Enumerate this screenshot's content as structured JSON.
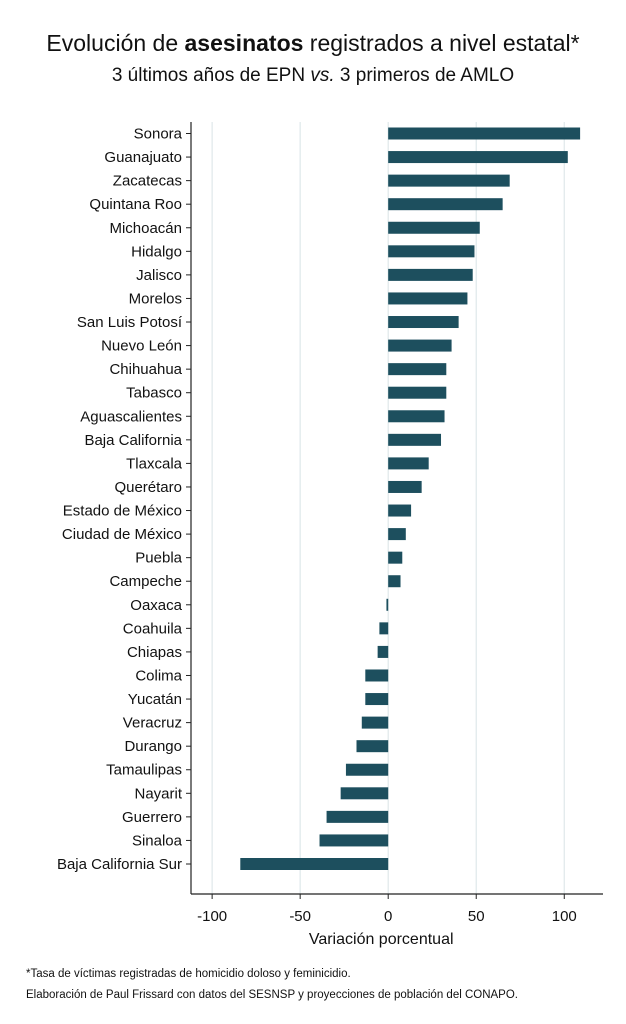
{
  "header": {
    "title_pre": "Evolución de ",
    "title_bold": "asesinatos",
    "title_post": " registrados a nivel estatal*",
    "subtitle_pre": "3 últimos años de EPN ",
    "subtitle_italic": "vs.",
    "subtitle_post": " 3 primeros de AMLO"
  },
  "footer": {
    "note": "*Tasa de víctimas registradas de homicidio doloso y feminicidio.",
    "source": "Elaboración de Paul Frissard con datos del SESNSP y proyecciones de población del CONAPO."
  },
  "colors": {
    "bar": "#1d4f5e",
    "grid": "#dfe8ea",
    "axis": "#222222"
  },
  "chart_data": {
    "type": "bar",
    "orientation": "horizontal",
    "title": "Evolución de asesinatos registrados a nivel estatal*",
    "subtitle": "3 últimos años de EPN vs. 3 primeros de AMLO",
    "xlabel": "Variación porcentual",
    "ylabel": "",
    "xlim": [
      -112,
      122
    ],
    "xticks": [
      -100,
      -50,
      0,
      50,
      100
    ],
    "grid": true,
    "categories": [
      "Sonora",
      "Guanajuato",
      "Zacatecas",
      "Quintana Roo",
      "Michoacán",
      "Hidalgo",
      "Jalisco",
      "Morelos",
      "San Luis Potosí",
      "Nuevo León",
      "Chihuahua",
      "Tabasco",
      "Aguascalientes",
      "Baja California",
      "Tlaxcala",
      "Querétaro",
      "Estado de México",
      "Ciudad de México",
      "Puebla",
      "Campeche",
      "Oaxaca",
      "Coahuila",
      "Chiapas",
      "Colima",
      "Yucatán",
      "Veracruz",
      "Durango",
      "Tamaulipas",
      "Nayarit",
      "Guerrero",
      "Sinaloa",
      "Baja California Sur"
    ],
    "values": [
      109,
      102,
      69,
      65,
      52,
      49,
      48,
      45,
      40,
      36,
      33,
      33,
      32,
      30,
      23,
      19,
      13,
      10,
      8,
      7,
      -1,
      -5,
      -6,
      -13,
      -13,
      -15,
      -18,
      -24,
      -27,
      -35,
      -39,
      -84
    ]
  }
}
